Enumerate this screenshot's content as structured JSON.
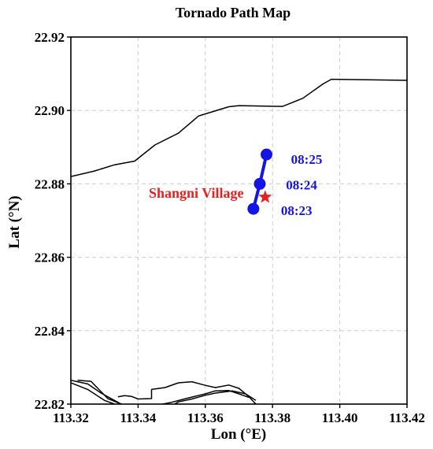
{
  "chart_data": {
    "type": "map",
    "title": "Tornado Path Map",
    "xlabel": "Lon (°E)",
    "ylabel": "Lat (°N)",
    "xlim": [
      113.32,
      113.42
    ],
    "ylim": [
      22.82,
      22.92
    ],
    "xticks": [
      "113.32",
      "113.34",
      "113.36",
      "113.38",
      "113.40",
      "113.42"
    ],
    "yticks": [
      "22.82",
      "22.84",
      "22.86",
      "22.88",
      "22.90",
      "22.92"
    ],
    "grid": true,
    "colors": {
      "path": "#1414e6",
      "label": "#1414e6",
      "marker": "#e62020",
      "coast": "#000000",
      "grid": "#cccccc"
    },
    "tornado_path": {
      "points": [
        {
          "lon": 113.3743,
          "lat": 22.8732
        },
        {
          "lon": 113.3762,
          "lat": 22.88
        },
        {
          "lon": 113.3782,
          "lat": 22.888
        }
      ],
      "time_labels": [
        {
          "text": "08:23",
          "lon": 113.3825,
          "lat": 22.8715
        },
        {
          "text": "08:24",
          "lon": 113.384,
          "lat": 22.8785
        },
        {
          "text": "08:25",
          "lon": 113.3855,
          "lat": 22.8855
        }
      ]
    },
    "village": {
      "name": "Shangni Village",
      "lon": 113.3778,
      "lat": 22.8764,
      "label_lon": 113.3573,
      "label_lat": 22.8762
    },
    "coastlines": [
      [
        [
          113.32,
          22.882
        ],
        [
          113.327,
          22.8835
        ],
        [
          113.333,
          22.8852
        ],
        [
          113.339,
          22.8862
        ],
        [
          113.345,
          22.8906
        ],
        [
          113.352,
          22.8938
        ],
        [
          113.358,
          22.8985
        ],
        [
          113.367,
          22.901
        ],
        [
          113.37,
          22.9013
        ],
        [
          113.383,
          22.9011
        ],
        [
          113.389,
          22.9033
        ],
        [
          113.395,
          22.9072
        ],
        [
          113.3975,
          22.9085
        ],
        [
          113.42,
          22.9082
        ]
      ],
      [
        [
          113.32,
          22.8265
        ],
        [
          113.325,
          22.8255
        ],
        [
          113.329,
          22.823
        ],
        [
          113.335,
          22.82
        ],
        [
          113.34,
          22.819
        ]
      ],
      [
        [
          113.32,
          22.8258
        ],
        [
          113.325,
          22.824
        ],
        [
          113.33,
          22.821
        ],
        [
          113.333,
          22.82
        ]
      ],
      [
        [
          113.322,
          22.8265
        ],
        [
          113.326,
          22.8262
        ],
        [
          113.331,
          22.8215
        ],
        [
          113.335,
          22.82
        ],
        [
          113.34,
          22.819
        ]
      ],
      [
        [
          113.334,
          22.822
        ],
        [
          113.336,
          22.8223
        ],
        [
          113.338,
          22.8221
        ],
        [
          113.34,
          22.8214
        ],
        [
          113.344,
          22.8215
        ],
        [
          113.344,
          22.824
        ],
        [
          113.348,
          22.8245
        ],
        [
          113.352,
          22.8258
        ],
        [
          113.356,
          22.8261
        ],
        [
          113.36,
          22.8251
        ],
        [
          113.363,
          22.8245
        ],
        [
          113.367,
          22.8252
        ],
        [
          113.37,
          22.8243
        ],
        [
          113.373,
          22.822
        ],
        [
          113.375,
          22.82
        ]
      ],
      [
        [
          113.338,
          22.8186
        ],
        [
          113.345,
          22.8196
        ],
        [
          113.35,
          22.8205
        ],
        [
          113.355,
          22.8217
        ],
        [
          113.36,
          22.8228
        ],
        [
          113.363,
          22.8236
        ],
        [
          113.367,
          22.8237
        ],
        [
          113.37,
          22.8228
        ],
        [
          113.373,
          22.8218
        ]
      ],
      [
        [
          113.349,
          22.819
        ],
        [
          113.352,
          22.8206
        ],
        [
          113.356,
          22.8214
        ],
        [
          113.36,
          22.8224
        ],
        [
          113.363,
          22.823
        ],
        [
          113.368,
          22.8236
        ],
        [
          113.372,
          22.8228
        ],
        [
          113.375,
          22.821
        ]
      ]
    ]
  }
}
